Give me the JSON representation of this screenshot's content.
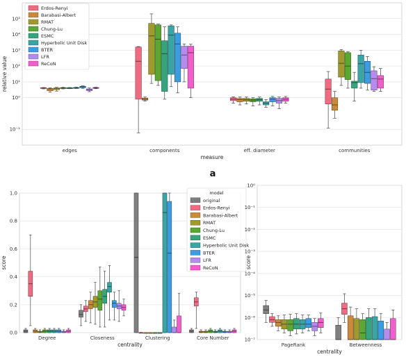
{
  "colors": {
    "original": "#7f7f7f",
    "Erdos-Renyi": "#ee6b82",
    "Barabasi-Albert": "#c98a3c",
    "RMAT": "#a09a2e",
    "Chung-Lu": "#5aa832",
    "ESMC": "#36a57e",
    "Hyperbolic Unit Disk": "#3aa5a4",
    "BTER": "#3d9ce0",
    "LFR": "#b58bef",
    "ReCoN": "#ef5fcb"
  },
  "chart_data": [
    {
      "type": "box",
      "xlabel": "measure",
      "ylabel": "relative value",
      "categories": [
        "edges",
        "components",
        "eff. diameter",
        "communities"
      ],
      "scale": "log",
      "ylim": [
        0.001,
        1000000
      ],
      "yticks": [
        "10⁻²",
        "10⁰",
        "10¹",
        "10²",
        "10³",
        "10⁴",
        "10⁵"
      ],
      "legend": [
        "Erdos-Renyi",
        "Barabasi-Albert",
        "RMAT",
        "Chung-Lu",
        "ESMC",
        "Hyperbolic Unit Disk",
        "BTER",
        "LFR",
        "ReCoN"
      ],
      "legend_position": "top-left",
      "panel_label": "a",
      "boxes": {
        "edges": [
          [
            4.2,
            3.8,
            4.3,
            3.6,
            4.4
          ],
          [
            3.6,
            2.7,
            3.8,
            2.2,
            4.2
          ],
          [
            3.9,
            3.2,
            4.1,
            2.6,
            4.5
          ],
          [
            4.1,
            3.8,
            4.3,
            3.6,
            4.5
          ],
          [
            4.1,
            3.9,
            4.2,
            3.7,
            4.4
          ],
          [
            4.2,
            4.0,
            4.4,
            3.8,
            4.6
          ],
          [
            4.8,
            4.3,
            5.3,
            3.9,
            5.6
          ],
          [
            3.2,
            2.8,
            3.6,
            2.4,
            4.1
          ],
          [
            4.2,
            3.9,
            4.4,
            3.7,
            4.6
          ]
        ],
        "components": [
          [
            200,
            0.8,
            1600,
            0.006,
            1700
          ],
          [
            0.8,
            0.7,
            0.95,
            0.6,
            1.1
          ],
          [
            8000,
            30,
            50000,
            8,
            200000
          ],
          [
            5000,
            12,
            40000,
            6,
            45000
          ],
          [
            600,
            2.5,
            4000,
            0.8,
            30000
          ],
          [
            9000,
            30,
            35000,
            5,
            40000
          ],
          [
            2500,
            10,
            12000,
            2,
            30000
          ],
          [
            500,
            70,
            1800,
            10,
            2500
          ],
          [
            700,
            4,
            1800,
            1,
            2400
          ]
        ],
        "eff. diameter": [
          [
            0.8,
            0.65,
            1.0,
            0.45,
            1.15
          ],
          [
            0.75,
            0.55,
            0.9,
            0.35,
            1.1
          ],
          [
            0.75,
            0.6,
            0.9,
            0.4,
            1.1
          ],
          [
            0.7,
            0.55,
            0.85,
            0.3,
            1.0
          ],
          [
            0.75,
            0.6,
            0.9,
            0.35,
            1.1
          ],
          [
            0.45,
            0.35,
            0.55,
            0.25,
            0.75
          ],
          [
            0.8,
            0.55,
            1.0,
            0.3,
            1.2
          ],
          [
            0.65,
            0.45,
            0.9,
            0.2,
            1.1
          ],
          [
            0.8,
            0.6,
            1.0,
            0.45,
            1.2
          ]
        ],
        "communities": [
          [
            3.5,
            0.4,
            15,
            0.012,
            45
          ],
          [
            0.35,
            0.16,
            1.0,
            0.05,
            2.5
          ],
          [
            150,
            20,
            900,
            6,
            1100
          ],
          [
            100,
            14,
            700,
            4,
            800
          ],
          [
            9,
            4,
            11,
            0.6,
            40
          ],
          [
            140,
            9,
            500,
            4,
            1000
          ],
          [
            40,
            8,
            200,
            3,
            400
          ],
          [
            16,
            3,
            50,
            2.5,
            90
          ],
          [
            15,
            4,
            25,
            2.5,
            70
          ]
        ]
      }
    },
    {
      "type": "box",
      "xlabel": "centrality",
      "ylabel": "score",
      "categories": [
        "Degree",
        "Closeness",
        "Clustering",
        "Core Number"
      ],
      "ylim": [
        0.0,
        1.0
      ],
      "yticks": [
        "0.0",
        "0.2",
        "0.4",
        "0.6",
        "0.8",
        "1.0"
      ],
      "legend_title": "model",
      "legend": [
        "original",
        "Erdos-Renyi",
        "Barabasi-Albert",
        "RMAT",
        "Chung-Lu",
        "ESMC",
        "Hyperbolic Unit Disk",
        "BTER",
        "LFR",
        "ReCoN"
      ],
      "legend_position": "top-right",
      "boxes": {
        "Degree": [
          [
            0.01,
            0.0,
            0.02,
            0.0,
            0.03
          ],
          [
            0.35,
            0.26,
            0.44,
            0.05,
            0.7
          ],
          [
            0.01,
            0.0,
            0.02,
            0.0,
            0.03
          ],
          [
            0.005,
            0.0,
            0.01,
            0.0,
            0.02
          ],
          [
            0.01,
            0.0,
            0.02,
            0.0,
            0.03
          ],
          [
            0.01,
            0.0,
            0.02,
            0.0,
            0.03
          ],
          [
            0.01,
            0.0,
            0.02,
            0.0,
            0.03
          ],
          [
            0.01,
            0.0,
            0.02,
            0.0,
            0.03
          ],
          [
            0.005,
            0.0,
            0.01,
            0.0,
            0.02
          ],
          [
            0.01,
            0.0,
            0.02,
            0.0,
            0.03
          ]
        ],
        "Closeness": [
          [
            0.13,
            0.11,
            0.16,
            0.05,
            0.2
          ],
          [
            0.17,
            0.15,
            0.19,
            0.08,
            0.23
          ],
          [
            0.2,
            0.17,
            0.23,
            0.07,
            0.29
          ],
          [
            0.22,
            0.18,
            0.26,
            0.06,
            0.36
          ],
          [
            0.24,
            0.16,
            0.3,
            0.04,
            0.47
          ],
          [
            0.26,
            0.21,
            0.31,
            0.04,
            0.44
          ],
          [
            0.33,
            0.29,
            0.36,
            0.09,
            0.48
          ],
          [
            0.21,
            0.18,
            0.23,
            0.09,
            0.29
          ],
          [
            0.19,
            0.17,
            0.21,
            0.08,
            0.3
          ],
          [
            0.18,
            0.16,
            0.2,
            0.12,
            0.24
          ]
        ],
        "Clustering": [
          [
            0.54,
            0.0,
            1.0,
            0.0,
            1.0
          ],
          [
            0.0,
            0.0,
            0.001,
            0.0,
            0.002
          ],
          [
            0.0,
            0.0,
            0.0,
            0.0,
            0.0
          ],
          [
            0.0,
            0.0,
            0.0,
            0.0,
            0.0
          ],
          [
            0.0,
            0.0,
            0.0,
            0.0,
            0.0
          ],
          [
            0.0,
            0.0,
            0.0,
            0.0,
            0.0
          ],
          [
            0.86,
            0.0,
            1.0,
            0.0,
            1.0
          ],
          [
            0.57,
            0.0,
            0.94,
            0.0,
            1.0
          ],
          [
            0.0,
            0.0,
            0.04,
            0.0,
            0.09
          ],
          [
            0.0,
            0.0,
            0.12,
            0.0,
            0.28
          ]
        ],
        "Core Number": [
          [
            0.01,
            0.0,
            0.02,
            0.0,
            0.03
          ],
          [
            0.22,
            0.19,
            0.25,
            0.03,
            0.29
          ],
          [
            0.005,
            0.0,
            0.01,
            0.0,
            0.02
          ],
          [
            0.005,
            0.0,
            0.01,
            0.0,
            0.02
          ],
          [
            0.01,
            0.0,
            0.02,
            0.0,
            0.03
          ],
          [
            0.005,
            0.0,
            0.01,
            0.0,
            0.02
          ],
          [
            0.01,
            0.0,
            0.02,
            0.0,
            0.03
          ],
          [
            0.005,
            0.0,
            0.01,
            0.0,
            0.02
          ],
          [
            0.005,
            0.0,
            0.01,
            0.0,
            0.02
          ],
          [
            0.01,
            0.0,
            0.02,
            0.0,
            0.03
          ]
        ]
      }
    },
    {
      "type": "box",
      "xlabel": "centrality",
      "ylabel": "score",
      "categories": [
        "PageRank",
        "Betweenness"
      ],
      "scale": "log",
      "ylim": [
        1e-07,
        1
      ],
      "yticks": [
        "10⁻⁷",
        "10⁻⁶",
        "10⁻⁵",
        "10⁻⁴",
        "10⁻³",
        "10⁻²",
        "10⁻¹",
        "10⁰"
      ],
      "boxes": {
        "PageRank": [
          [
            2.2e-06,
            1.5e-06,
            3.5e-06,
            6e-07,
            6e-06
          ],
          [
            8e-07,
            6e-07,
            1.1e-06,
            4e-07,
            1.5e-06
          ],
          [
            6e-07,
            4e-07,
            8e-07,
            2.5e-07,
            1.2e-06
          ],
          [
            5e-07,
            3e-07,
            8e-07,
            2e-07,
            1.3e-06
          ],
          [
            5e-07,
            2.5e-07,
            8e-07,
            1.5e-07,
            1.4e-06
          ],
          [
            5e-07,
            3e-07,
            9e-07,
            1.8e-07,
            1.5e-06
          ],
          [
            5e-07,
            3e-07,
            8e-07,
            2e-07,
            1.3e-06
          ],
          [
            5e-07,
            3.5e-07,
            9e-07,
            2.5e-07,
            1.3e-06
          ],
          [
            4e-07,
            2.5e-07,
            6e-07,
            1.5e-07,
            9e-07
          ],
          [
            6e-07,
            3.5e-07,
            9e-07,
            2e-07,
            1.6e-06
          ]
        ],
        "Betweenness": [
          [
            1e-07,
            1e-07,
            4.5e-07,
            1e-07,
            1e-06
          ],
          [
            2.5e-06,
            1.4e-06,
            4.5e-06,
            6e-07,
            1.2e-05
          ],
          [
            1e-07,
            1e-07,
            1.2e-06,
            1e-07,
            3e-06
          ],
          [
            1e-07,
            1e-07,
            9e-07,
            1e-07,
            2.5e-06
          ],
          [
            2e-07,
            1e-07,
            8e-07,
            1e-07,
            1.5e-06
          ],
          [
            1e-07,
            1e-07,
            1e-06,
            1e-07,
            2.5e-06
          ],
          [
            1e-07,
            1e-07,
            1.1e-06,
            1e-07,
            2.5e-06
          ],
          [
            1e-07,
            1e-07,
            7e-07,
            1e-07,
            1.5e-06
          ],
          [
            1e-07,
            1e-07,
            3e-07,
            1e-07,
            6e-07
          ],
          [
            1e-07,
            1e-07,
            9e-07,
            1e-07,
            2.2e-06
          ]
        ]
      }
    }
  ]
}
